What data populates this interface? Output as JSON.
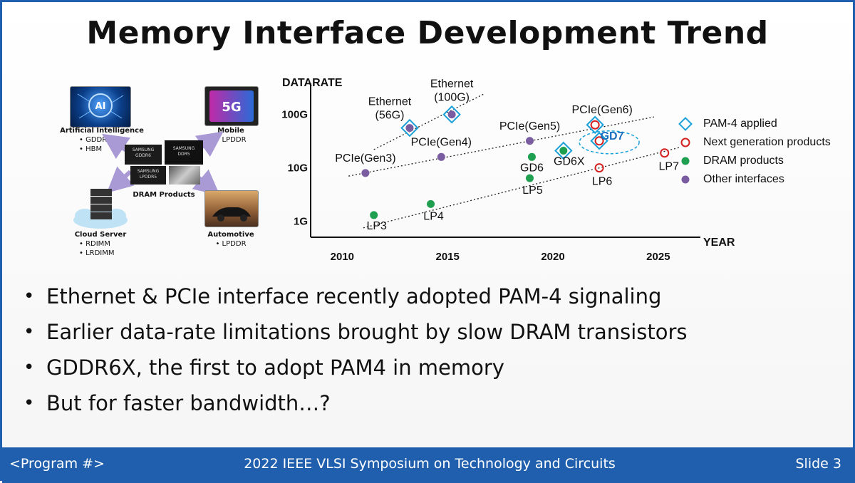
{
  "slide": {
    "title": "Memory Interface Development Trend",
    "footer_left": "<Program #>",
    "footer_center": "2022 IEEE VLSI Symposium on Technology and Circuits",
    "footer_right": "Slide 3"
  },
  "diagram": {
    "ai": {
      "title": "Artificial Intelligence",
      "items": [
        "• GDDR",
        "• HBM"
      ],
      "icon_text": "AI"
    },
    "mobile": {
      "title": "Mobile",
      "items": [
        "• LPDDR"
      ],
      "icon_text": "5G"
    },
    "cloud": {
      "title": "Cloud Server",
      "items": [
        "• RDIMM",
        "• LRDIMM"
      ]
    },
    "auto": {
      "title": "Automotive",
      "items": [
        "• LPDDR"
      ]
    },
    "center": {
      "label": "DRAM Products",
      "chips": [
        "SAMSUNG\nGDDR6",
        "SAMSUNG\nDDR5",
        "SAMSUNG\nLPDDR5",
        ""
      ]
    }
  },
  "legend": [
    {
      "label": "PAM-4 applied",
      "marker": "diamond",
      "color": "#1aa0d8"
    },
    {
      "label": "Next generation products",
      "marker": "ring",
      "color": "#d62020"
    },
    {
      "label": "DRAM products",
      "marker": "dot",
      "color": "#1fa050"
    },
    {
      "label": "Other interfaces",
      "marker": "dot",
      "color": "#7a5ca0"
    }
  ],
  "bullets": [
    "Ethernet & PCIe interface recently adopted PAM-4 signaling",
    "Earlier data-rate limitations brought by slow DRAM transistors",
    "GDDR6X, the first to adopt PAM4 in memory",
    "But for faster bandwidth…?"
  ],
  "chart_data": {
    "type": "scatter",
    "xlabel": "YEAR",
    "ylabel": "DATARATE",
    "x_ticks": [
      2010,
      2015,
      2020,
      2025
    ],
    "y_ticks": [
      {
        "value": 1,
        "label": "1G"
      },
      {
        "value": 10,
        "label": "10G"
      },
      {
        "value": 100,
        "label": "100G"
      }
    ],
    "y_scale": "log",
    "xlim": [
      2008.5,
      2027
    ],
    "ylim": [
      0.5,
      300
    ],
    "colors": {
      "pam4": "#1aa0d8",
      "next": "#d62020",
      "dram": "#1fa050",
      "other": "#7a5ca0"
    },
    "points": [
      {
        "label": "Ethernet\n(56G)",
        "x": 2013.2,
        "y": 56,
        "cat": "other",
        "pam4": true
      },
      {
        "label": "Ethernet\n(100G)",
        "x": 2015.2,
        "y": 100,
        "cat": "other",
        "pam4": true
      },
      {
        "label": "PCIe(Gen3)",
        "x": 2011.1,
        "y": 8,
        "cat": "other"
      },
      {
        "label": "PCIe(Gen4)",
        "x": 2014.7,
        "y": 16,
        "cat": "other"
      },
      {
        "label": "PCIe(Gen5)",
        "x": 2018.9,
        "y": 32,
        "cat": "other"
      },
      {
        "label": "PCIe(Gen6)",
        "x": 2022,
        "y": 64,
        "cat": "next",
        "pam4": true
      },
      {
        "label": "GD6",
        "x": 2019,
        "y": 16,
        "cat": "dram"
      },
      {
        "label": "GD6X",
        "x": 2020.5,
        "y": 21,
        "cat": "dram",
        "pam4": true
      },
      {
        "label": "GD7",
        "x": 2022.2,
        "y": 32,
        "cat": "next",
        "pam4": true
      },
      {
        "label": "LP3",
        "x": 2011.5,
        "y": 1.3,
        "cat": "dram"
      },
      {
        "label": "LP4",
        "x": 2014.2,
        "y": 2.1,
        "cat": "dram"
      },
      {
        "label": "LP5",
        "x": 2018.9,
        "y": 6.4,
        "cat": "dram"
      },
      {
        "label": "LP6",
        "x": 2022.2,
        "y": 10,
        "cat": "next"
      },
      {
        "label": "LP7",
        "x": 2025.3,
        "y": 19,
        "cat": "next"
      }
    ],
    "trend_lines": [
      {
        "from": [
          2011,
          0.75
        ],
        "to": [
          2026,
          24
        ]
      },
      {
        "from": [
          2010.3,
          7
        ],
        "to": [
          2024.8,
          90
        ]
      },
      {
        "from": [
          2011.5,
          22
        ],
        "to": [
          2016.7,
          240
        ]
      }
    ]
  }
}
